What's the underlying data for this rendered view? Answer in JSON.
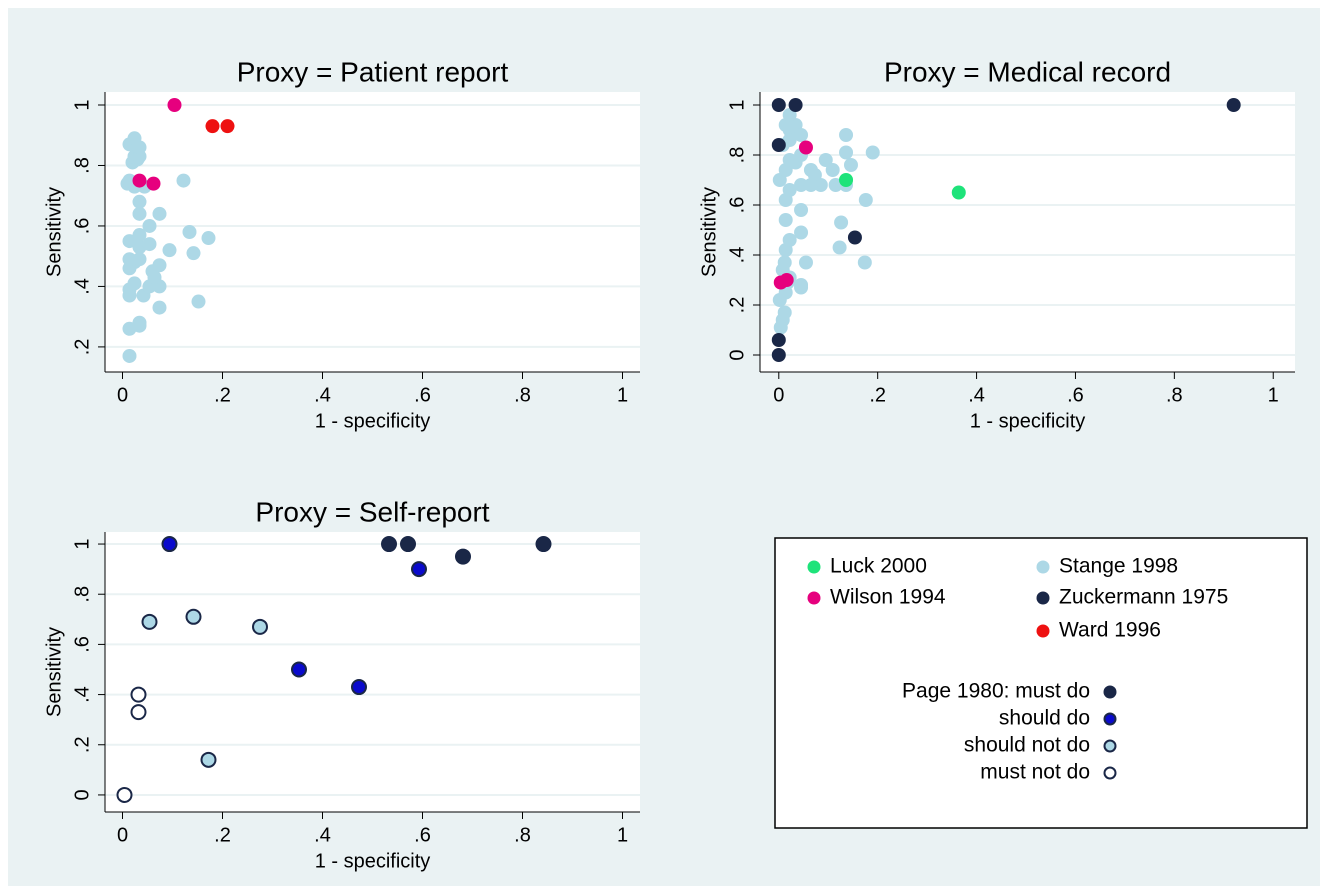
{
  "chart_data": [
    {
      "type": "scatter",
      "title": "Proxy = Patient report",
      "x_label": "1 - specificity",
      "y_label": "Sensitivity",
      "xlim": [
        -0.035,
        1.035
      ],
      "ylim": [
        0.117,
        1.043
      ],
      "xticks": [
        0,
        {
          "value": 0.2,
          "label": ".2"
        },
        {
          "value": 0.4,
          "label": ".4"
        },
        {
          "value": 0.6,
          "label": ".6"
        },
        {
          "value": 0.8,
          "label": ".8"
        },
        1
      ],
      "yticks": [
        {
          "value": 0.2,
          "label": ".2"
        },
        {
          "value": 0.4,
          "label": ".4"
        },
        {
          "value": 0.6,
          "label": ".6"
        },
        {
          "value": 0.8,
          "label": ".8"
        },
        1
      ],
      "grid": true,
      "series": [
        {
          "name": "Stange 1998",
          "color": "#add8e6",
          "x": [
            0.014,
            0.014,
            0.034,
            0.034,
            0.014,
            0.014,
            0.042,
            0.024,
            0.054,
            0.074,
            0.074,
            0.014,
            0.024,
            0.014,
            0.034,
            0.06,
            0.074,
            0.064,
            0.034,
            0.054,
            0.014,
            0.034,
            0.054,
            0.094,
            0.134,
            0.142,
            0.172,
            0.152,
            0.034,
            0.074,
            0.034,
            0.01,
            0.024,
            0.044,
            0.014,
            0.122,
            0.02,
            0.03,
            0.024,
            0.034,
            0.014,
            0.024,
            0.034
          ],
          "values": [
            0.17,
            0.26,
            0.28,
            0.27,
            0.37,
            0.39,
            0.37,
            0.41,
            0.4,
            0.4,
            0.33,
            0.46,
            0.48,
            0.49,
            0.49,
            0.45,
            0.47,
            0.43,
            0.53,
            0.54,
            0.55,
            0.57,
            0.6,
            0.52,
            0.58,
            0.51,
            0.56,
            0.35,
            0.64,
            0.64,
            0.68,
            0.74,
            0.73,
            0.73,
            0.75,
            0.75,
            0.81,
            0.82,
            0.83,
            0.83,
            0.87,
            0.89,
            0.86
          ]
        },
        {
          "name": "Wilson 1994",
          "color": "#e6007e",
          "x": [
            0.104,
            0.034,
            0.062
          ],
          "values": [
            1.0,
            0.75,
            0.74
          ]
        },
        {
          "name": "Ward 1996",
          "color": "#ee1111",
          "x": [
            0.18,
            0.21
          ],
          "values": [
            0.93,
            0.93
          ]
        }
      ]
    },
    {
      "type": "scatter",
      "title": "Proxy = Medical record",
      "x_label": "1 - specificity",
      "y_label": "Sensitivity",
      "xlim": [
        -0.038,
        1.044
      ],
      "ylim": [
        -0.068,
        1.052
      ],
      "xticks": [
        0,
        {
          "value": 0.2,
          "label": ".2"
        },
        {
          "value": 0.4,
          "label": ".4"
        },
        {
          "value": 0.6,
          "label": ".6"
        },
        {
          "value": 0.8,
          "label": ".8"
        },
        1
      ],
      "yticks": [
        0,
        {
          "value": 0.2,
          "label": ".2"
        },
        {
          "value": 0.4,
          "label": ".4"
        },
        {
          "value": 0.6,
          "label": ".6"
        },
        {
          "value": 0.8,
          "label": ".8"
        },
        1
      ],
      "grid": true,
      "series": [
        {
          "name": "Stange 1998",
          "color": "#add8e6",
          "x": [
            0.008,
            0.004,
            0.012,
            0.002,
            0.014,
            0.018,
            0.008,
            0.022,
            0.012,
            0.045,
            0.045,
            0.055,
            0.014,
            0.022,
            0.045,
            0.045,
            0.014,
            0.014,
            0.022,
            0.002,
            0.014,
            0.022,
            0.034,
            0.008,
            0.022,
            0.014,
            0.034,
            0.022,
            0.045,
            0.045,
            0.045,
            0.065,
            0.073,
            0.095,
            0.085,
            0.136,
            0.136,
            0.146,
            0.115,
            0.136,
            0.176,
            0.126,
            0.174,
            0.123,
            0.109,
            0.065,
            0.022,
            0.19
          ],
          "values": [
            0.14,
            0.11,
            0.17,
            0.22,
            0.25,
            0.29,
            0.34,
            0.31,
            0.37,
            0.28,
            0.27,
            0.37,
            0.42,
            0.46,
            0.49,
            0.58,
            0.54,
            0.62,
            0.66,
            0.7,
            0.74,
            0.78,
            0.77,
            0.84,
            0.9,
            0.92,
            0.92,
            0.86,
            0.88,
            0.68,
            0.8,
            0.74,
            0.72,
            0.78,
            0.68,
            0.88,
            0.81,
            0.76,
            0.68,
            0.68,
            0.62,
            0.53,
            0.37,
            0.43,
            0.74,
            0.68,
            0.96,
            0.81
          ]
        },
        {
          "name": "Zuckermann 1975",
          "color": "#1a2747",
          "x": [
            0,
            0.034,
            0,
            0.154,
            0,
            0,
            0.92
          ],
          "values": [
            1.0,
            1.0,
            0.84,
            0.47,
            0.06,
            0,
            1.0
          ]
        },
        {
          "name": "Luck 2000",
          "color": "#1ee37a",
          "x": [
            0.136,
            0.364
          ],
          "values": [
            0.7,
            0.65
          ]
        },
        {
          "name": "Wilson 1994",
          "color": "#e6007e",
          "x": [
            0.055,
            0.016,
            0.004
          ],
          "values": [
            0.83,
            0.3,
            0.29
          ]
        }
      ]
    },
    {
      "type": "scatter",
      "title": "Proxy = Self-report",
      "x_label": "1 - specificity",
      "y_label": "Sensitivity",
      "xlim": [
        -0.035,
        1.035
      ],
      "ylim": [
        -0.068,
        1.048
      ],
      "xticks": [
        0,
        {
          "value": 0.2,
          "label": ".2"
        },
        {
          "value": 0.4,
          "label": ".4"
        },
        {
          "value": 0.6,
          "label": ".6"
        },
        {
          "value": 0.8,
          "label": ".8"
        },
        1
      ],
      "yticks": [
        0,
        {
          "value": 0.2,
          "label": ".2"
        },
        {
          "value": 0.4,
          "label": ".4"
        },
        {
          "value": 0.6,
          "label": ".6"
        },
        {
          "value": 0.8,
          "label": ".8"
        },
        1
      ],
      "grid": true,
      "marker_stroke": "#1a2747",
      "series": [
        {
          "name": "Page 1980: must do",
          "color": "#1a2747",
          "x": [
            0.533,
            0.571,
            0.681,
            0.842
          ],
          "values": [
            1.0,
            1.0,
            0.95,
            1.0
          ]
        },
        {
          "name": "should do",
          "color": "#0a0acd",
          "x": [
            0.094,
            0.593,
            0.353,
            0.473
          ],
          "values": [
            1.0,
            0.9,
            0.5,
            0.43
          ]
        },
        {
          "name": "should not do",
          "color": "#add8e6",
          "x": [
            0.054,
            0.142,
            0.275,
            0.172
          ],
          "values": [
            0.69,
            0.71,
            0.67,
            0.14
          ]
        },
        {
          "name": "must not do",
          "color": "#ffffff",
          "x": [
            0.032,
            0.032,
            0.004
          ],
          "values": [
            0.4,
            0.33,
            0
          ]
        }
      ]
    }
  ]
}
